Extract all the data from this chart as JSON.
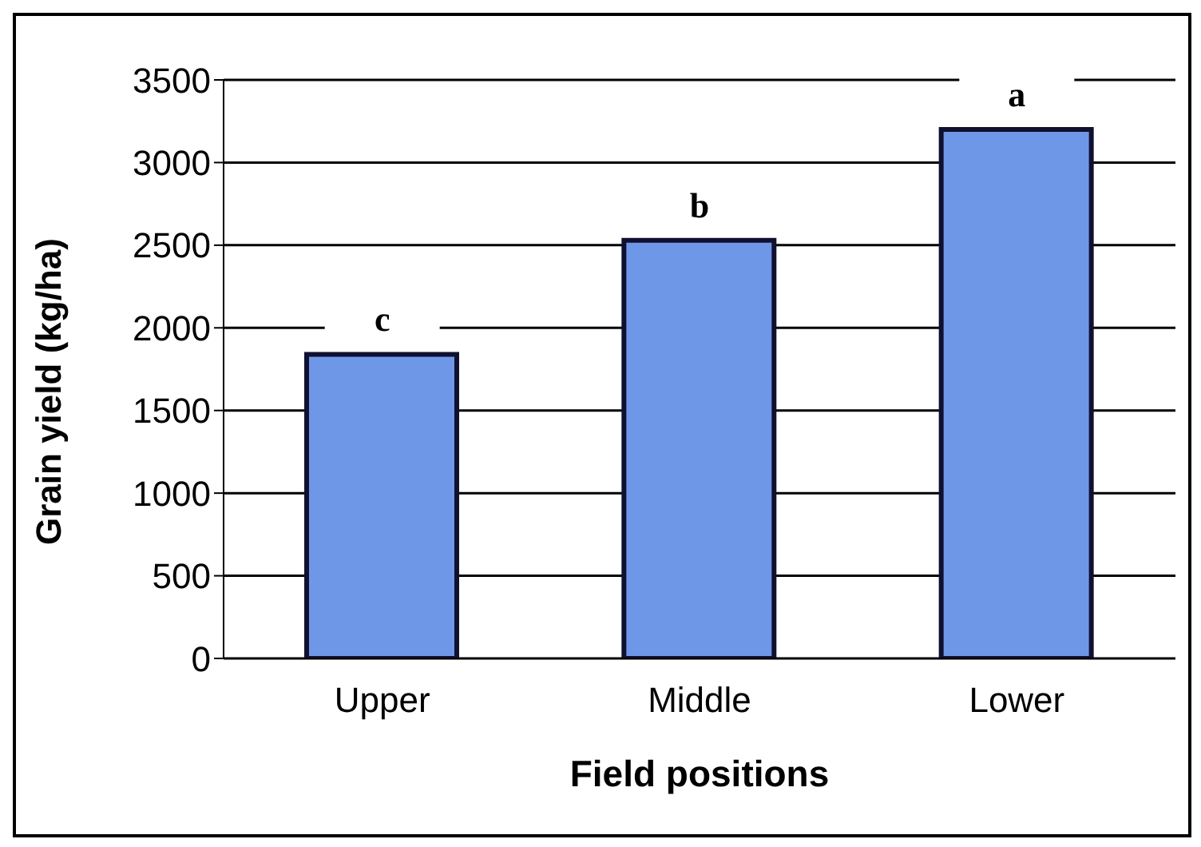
{
  "chart_data": {
    "type": "bar",
    "xlabel": "Field positions",
    "ylabel": "Grain yield (kg/ha)",
    "categories": [
      "Upper",
      "Middle",
      "Lower"
    ],
    "values": [
      1840,
      2530,
      3200
    ],
    "color": "#6f97e8",
    "ylim": [
      0,
      3500
    ],
    "yticks": [
      0,
      500,
      1000,
      1500,
      2000,
      2500,
      3000,
      3500
    ],
    "grid": "y",
    "annotations": [
      {
        "text": "c",
        "x": "Upper",
        "y": 1840
      },
      {
        "text": "b",
        "x": "Middle",
        "y": 2530
      },
      {
        "text": "a",
        "x": "Lower",
        "y": 3200
      }
    ]
  }
}
